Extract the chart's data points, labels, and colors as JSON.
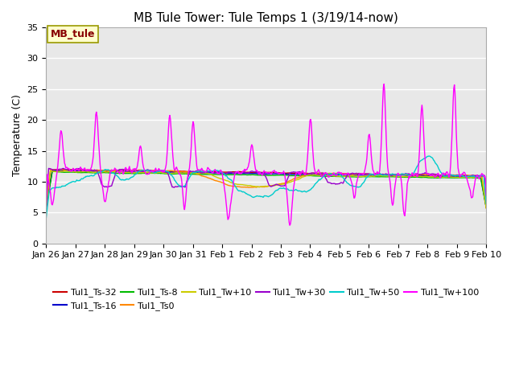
{
  "title": "MB Tule Tower: Tule Temps 1 (3/19/14-now)",
  "ylabel": "Temperature (C)",
  "ylim": [
    0,
    35
  ],
  "background_color": "#ffffff",
  "plot_bg_color": "#e8e8e8",
  "series": [
    {
      "label": "Tul1_Ts-32",
      "color": "#cc0000",
      "lw": 1.0
    },
    {
      "label": "Tul1_Ts-16",
      "color": "#0000cc",
      "lw": 1.0
    },
    {
      "label": "Tul1_Ts-8",
      "color": "#00bb00",
      "lw": 1.0
    },
    {
      "label": "Tul1_Ts0",
      "color": "#ff8800",
      "lw": 1.0
    },
    {
      "label": "Tul1_Tw+10",
      "color": "#cccc00",
      "lw": 1.0
    },
    {
      "label": "Tul1_Tw+30",
      "color": "#9900cc",
      "lw": 1.0
    },
    {
      "label": "Tul1_Tw+50",
      "color": "#00cccc",
      "lw": 1.0
    },
    {
      "label": "Tul1_Tw+100",
      "color": "#ff00ff",
      "lw": 1.0
    }
  ],
  "xtick_labels": [
    "Jan 26",
    "Jan 27",
    "Jan 28",
    "Jan 29",
    "Jan 30",
    "Jan 31",
    "Feb 1",
    "Feb 2",
    "Feb 3",
    "Feb 4",
    "Feb 5",
    "Feb 6",
    "Feb 7",
    "Feb 8",
    "Feb 9",
    "Feb 10"
  ],
  "ytick_positions": [
    0,
    5,
    10,
    15,
    20,
    25,
    30,
    35
  ],
  "title_fontsize": 11,
  "axis_label_fontsize": 9,
  "tick_fontsize": 8,
  "legend_fontsize": 8,
  "tag_label": "MB_tule",
  "tag_bg": "#ffffcc",
  "tag_border": "#999900"
}
